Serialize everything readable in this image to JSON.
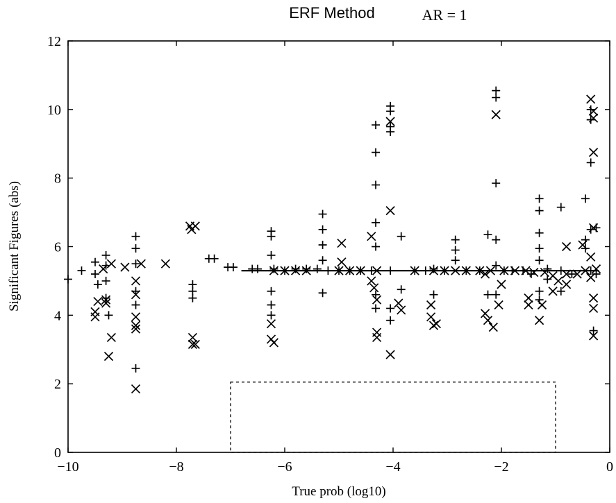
{
  "chart_data": {
    "type": "scatter",
    "title": "ERF Method",
    "annotation": "AR = 1",
    "xlabel": "True prob (log10)",
    "ylabel": "Significant Figures (abs)",
    "xlim": [
      -10,
      0
    ],
    "ylim": [
      0,
      12
    ],
    "xticks": [
      -10,
      -8,
      -6,
      -4,
      -2,
      0
    ],
    "yticks": [
      0,
      2,
      4,
      6,
      8,
      10,
      12
    ],
    "xtick_labels": [
      "−10",
      "−8",
      "−6",
      "−4",
      "−2",
      "0"
    ],
    "ytick_labels": [
      "0",
      "2",
      "4",
      "6",
      "8",
      "10",
      "12"
    ],
    "grid": false,
    "legend": "none",
    "series": [
      {
        "marker": "plus",
        "points": [
          [
            -10.0,
            5.05
          ],
          [
            -9.75,
            5.3
          ],
          [
            -9.5,
            5.55
          ],
          [
            -9.5,
            5.2
          ],
          [
            -9.45,
            4.9
          ],
          [
            -9.3,
            5.75
          ],
          [
            -9.3,
            5.45
          ],
          [
            -9.3,
            5.0
          ],
          [
            -9.3,
            4.5
          ],
          [
            -9.25,
            4.0
          ],
          [
            -8.75,
            6.3
          ],
          [
            -8.75,
            5.95
          ],
          [
            -8.75,
            5.5
          ],
          [
            -8.75,
            4.7
          ],
          [
            -8.75,
            4.3
          ],
          [
            -8.75,
            2.45
          ],
          [
            -7.7,
            4.9
          ],
          [
            -7.7,
            4.7
          ],
          [
            -7.7,
            4.5
          ],
          [
            -7.4,
            5.65
          ],
          [
            -7.3,
            5.65
          ],
          [
            -7.05,
            5.4
          ],
          [
            -6.95,
            5.4
          ],
          [
            -6.6,
            5.35
          ],
          [
            -6.5,
            5.35
          ],
          [
            -6.25,
            6.45
          ],
          [
            -6.25,
            6.3
          ],
          [
            -6.25,
            5.75
          ],
          [
            -6.25,
            4.7
          ],
          [
            -6.25,
            4.3
          ],
          [
            -6.25,
            4.0
          ],
          [
            -6.2,
            5.35
          ],
          [
            -6.0,
            5.3
          ],
          [
            -5.8,
            5.35
          ],
          [
            -5.6,
            5.35
          ],
          [
            -5.4,
            5.35
          ],
          [
            -5.3,
            6.95
          ],
          [
            -5.3,
            6.5
          ],
          [
            -5.3,
            6.05
          ],
          [
            -5.3,
            5.6
          ],
          [
            -5.3,
            4.65
          ],
          [
            -5.2,
            5.3
          ],
          [
            -5.0,
            5.3
          ],
          [
            -4.8,
            5.3
          ],
          [
            -4.6,
            5.3
          ],
          [
            -4.4,
            5.3
          ],
          [
            -4.32,
            9.55
          ],
          [
            -4.32,
            8.75
          ],
          [
            -4.32,
            7.8
          ],
          [
            -4.32,
            6.7
          ],
          [
            -4.32,
            6.0
          ],
          [
            -4.32,
            4.6
          ],
          [
            -4.32,
            4.2
          ],
          [
            -4.05,
            10.1
          ],
          [
            -4.05,
            9.95
          ],
          [
            -4.05,
            9.5
          ],
          [
            -4.05,
            9.35
          ],
          [
            -4.05,
            5.3
          ],
          [
            -4.05,
            4.2
          ],
          [
            -4.05,
            3.85
          ],
          [
            -3.85,
            6.3
          ],
          [
            -3.85,
            4.75
          ],
          [
            -3.6,
            5.3
          ],
          [
            -3.4,
            5.3
          ],
          [
            -3.25,
            5.35
          ],
          [
            -3.25,
            4.6
          ],
          [
            -3.05,
            5.3
          ],
          [
            -2.85,
            6.2
          ],
          [
            -2.85,
            5.9
          ],
          [
            -2.85,
            5.6
          ],
          [
            -2.65,
            5.3
          ],
          [
            -2.4,
            5.3
          ],
          [
            -2.25,
            6.35
          ],
          [
            -2.25,
            4.6
          ],
          [
            -2.1,
            10.55
          ],
          [
            -2.1,
            10.35
          ],
          [
            -2.1,
            7.85
          ],
          [
            -2.1,
            6.2
          ],
          [
            -2.1,
            5.45
          ],
          [
            -2.1,
            4.6
          ],
          [
            -1.95,
            5.3
          ],
          [
            -1.8,
            5.3
          ],
          [
            -1.6,
            5.3
          ],
          [
            -1.45,
            5.2
          ],
          [
            -1.3,
            7.4
          ],
          [
            -1.3,
            7.05
          ],
          [
            -1.3,
            6.4
          ],
          [
            -1.3,
            5.95
          ],
          [
            -1.3,
            5.6
          ],
          [
            -1.3,
            4.7
          ],
          [
            -1.3,
            4.45
          ],
          [
            -1.15,
            5.35
          ],
          [
            -1.15,
            5.05
          ],
          [
            -0.9,
            7.15
          ],
          [
            -0.9,
            5.3
          ],
          [
            -0.9,
            4.7
          ],
          [
            -0.7,
            5.2
          ],
          [
            -0.45,
            7.4
          ],
          [
            -0.45,
            6.2
          ],
          [
            -0.45,
            5.95
          ],
          [
            -0.35,
            10.0
          ],
          [
            -0.35,
            9.7
          ],
          [
            -0.35,
            8.45
          ],
          [
            -0.35,
            6.5
          ],
          [
            -0.35,
            5.3
          ],
          [
            -0.3,
            3.55
          ],
          [
            -0.25,
            6.55
          ],
          [
            -0.25,
            5.2
          ]
        ]
      },
      {
        "marker": "cross",
        "points": [
          [
            -9.5,
            4.1
          ],
          [
            -9.5,
            3.95
          ],
          [
            -9.45,
            4.4
          ],
          [
            -9.35,
            5.35
          ],
          [
            -9.3,
            4.45
          ],
          [
            -9.3,
            4.35
          ],
          [
            -9.25,
            2.8
          ],
          [
            -9.2,
            3.35
          ],
          [
            -9.2,
            5.5
          ],
          [
            -8.95,
            5.4
          ],
          [
            -8.75,
            5.0
          ],
          [
            -8.75,
            4.6
          ],
          [
            -8.75,
            3.95
          ],
          [
            -8.75,
            3.7
          ],
          [
            -8.75,
            3.6
          ],
          [
            -8.75,
            1.85
          ],
          [
            -8.65,
            5.5
          ],
          [
            -8.2,
            5.5
          ],
          [
            -7.75,
            6.6
          ],
          [
            -7.72,
            6.5
          ],
          [
            -7.7,
            3.35
          ],
          [
            -7.7,
            3.15
          ],
          [
            -7.65,
            6.6
          ],
          [
            -7.65,
            3.15
          ],
          [
            -6.25,
            3.75
          ],
          [
            -6.25,
            3.3
          ],
          [
            -6.2,
            3.2
          ],
          [
            -4.95,
            6.1
          ],
          [
            -4.95,
            5.55
          ],
          [
            -4.4,
            6.3
          ],
          [
            -4.4,
            5.0
          ],
          [
            -4.35,
            4.8
          ],
          [
            -4.3,
            4.45
          ],
          [
            -4.3,
            3.5
          ],
          [
            -4.3,
            3.35
          ],
          [
            -4.05,
            9.65
          ],
          [
            -4.05,
            7.05
          ],
          [
            -4.05,
            2.85
          ],
          [
            -3.9,
            4.35
          ],
          [
            -3.85,
            4.15
          ],
          [
            -3.3,
            4.3
          ],
          [
            -3.3,
            3.95
          ],
          [
            -3.25,
            3.7
          ],
          [
            -3.2,
            3.75
          ],
          [
            -2.3,
            5.2
          ],
          [
            -2.3,
            4.05
          ],
          [
            -2.25,
            3.85
          ],
          [
            -2.15,
            3.65
          ],
          [
            -2.1,
            9.85
          ],
          [
            -2.05,
            4.3
          ],
          [
            -2.0,
            4.9
          ],
          [
            -1.5,
            4.3
          ],
          [
            -1.5,
            4.5
          ],
          [
            -1.3,
            3.85
          ],
          [
            -1.25,
            4.3
          ],
          [
            -1.05,
            4.7
          ],
          [
            -0.8,
            6.0
          ],
          [
            -0.8,
            4.9
          ],
          [
            -0.5,
            6.05
          ],
          [
            -0.35,
            10.3
          ],
          [
            -0.3,
            9.95
          ],
          [
            -0.3,
            9.75
          ],
          [
            -0.3,
            8.75
          ],
          [
            -0.3,
            6.55
          ],
          [
            -0.3,
            4.5
          ],
          [
            -0.3,
            4.2
          ],
          [
            -0.3,
            3.4
          ],
          [
            -0.35,
            5.7
          ]
        ]
      },
      {
        "marker": "cross",
        "points": [
          [
            -6.2,
            5.3
          ],
          [
            -6.0,
            5.3
          ],
          [
            -5.8,
            5.3
          ],
          [
            -5.6,
            5.3
          ],
          [
            -5.0,
            5.3
          ],
          [
            -4.8,
            5.3
          ],
          [
            -4.6,
            5.3
          ],
          [
            -4.3,
            5.3
          ],
          [
            -3.6,
            5.3
          ],
          [
            -3.25,
            5.3
          ],
          [
            -3.05,
            5.3
          ],
          [
            -2.85,
            5.3
          ],
          [
            -2.65,
            5.3
          ],
          [
            -2.4,
            5.3
          ],
          [
            -2.2,
            5.3
          ],
          [
            -1.95,
            5.3
          ],
          [
            -1.75,
            5.3
          ],
          [
            -1.55,
            5.3
          ],
          [
            -1.4,
            5.25
          ],
          [
            -1.2,
            5.25
          ],
          [
            -1.05,
            5.15
          ],
          [
            -0.95,
            5.0
          ],
          [
            -0.8,
            5.2
          ],
          [
            -0.6,
            5.2
          ],
          [
            -0.45,
            5.3
          ],
          [
            -0.35,
            5.1
          ],
          [
            -0.25,
            5.35
          ]
        ]
      }
    ],
    "reference_line": {
      "y": 5.3,
      "x_range": [
        -6.8,
        -0.2
      ]
    },
    "dashed_region": {
      "x_range": [
        -7.0,
        -1.0
      ],
      "y_range": [
        0,
        2.05
      ]
    }
  }
}
